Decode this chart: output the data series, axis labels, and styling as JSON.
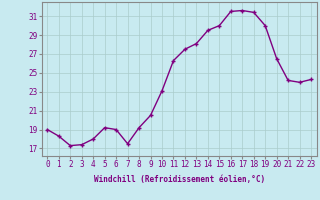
{
  "x": [
    0,
    1,
    2,
    3,
    4,
    5,
    6,
    7,
    8,
    9,
    10,
    11,
    12,
    13,
    14,
    15,
    16,
    17,
    18,
    19,
    20,
    21,
    22,
    23
  ],
  "y": [
    19.0,
    18.3,
    17.3,
    17.4,
    18.0,
    19.2,
    19.0,
    17.5,
    19.2,
    20.5,
    23.1,
    26.3,
    27.5,
    28.1,
    29.5,
    30.0,
    31.5,
    31.6,
    31.4,
    30.0,
    26.5,
    24.2,
    24.0,
    24.3
  ],
  "line_color": "#800080",
  "marker": "+",
  "marker_size": 3,
  "bg_color": "#c8eaf0",
  "grid_color": "#aacccc",
  "xlabel": "Windchill (Refroidissement éolien,°C)",
  "ylabel_ticks": [
    17,
    19,
    21,
    23,
    25,
    27,
    29,
    31
  ],
  "xtick_labels": [
    "0",
    "1",
    "2",
    "3",
    "4",
    "5",
    "6",
    "7",
    "8",
    "9",
    "10",
    "11",
    "12",
    "13",
    "14",
    "15",
    "16",
    "17",
    "18",
    "19",
    "20",
    "21",
    "22",
    "23"
  ],
  "ylim": [
    16.2,
    32.5
  ],
  "xlim": [
    -0.5,
    23.5
  ],
  "tick_color": "#800080",
  "label_color": "#800080",
  "spine_color": "#888888",
  "tick_fontsize": 5.5,
  "label_fontsize": 5.5
}
